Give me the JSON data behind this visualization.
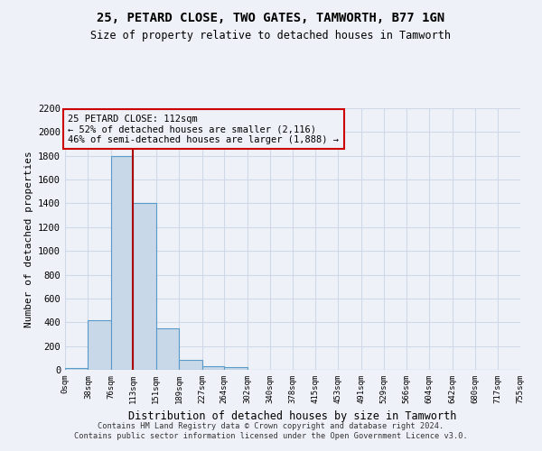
{
  "title1": "25, PETARD CLOSE, TWO GATES, TAMWORTH, B77 1GN",
  "title2": "Size of property relative to detached houses in Tamworth",
  "xlabel": "Distribution of detached houses by size in Tamworth",
  "ylabel": "Number of detached properties",
  "footer1": "Contains HM Land Registry data © Crown copyright and database right 2024.",
  "footer2": "Contains public sector information licensed under the Open Government Licence v3.0.",
  "annotation_line1": "25 PETARD CLOSE: 112sqm",
  "annotation_line2": "← 52% of detached houses are smaller (2,116)",
  "annotation_line3": "46% of semi-detached houses are larger (1,888) →",
  "property_sqm": 112,
  "bar_edges": [
    0,
    38,
    76,
    113,
    151,
    189,
    227,
    264,
    302,
    340,
    378,
    415,
    453,
    491,
    529,
    566,
    604,
    642,
    680,
    717,
    755
  ],
  "bar_heights": [
    15,
    420,
    1800,
    1400,
    350,
    80,
    30,
    20,
    0,
    0,
    0,
    0,
    0,
    0,
    0,
    0,
    0,
    0,
    0,
    0
  ],
  "bar_color": "#c8d8e8",
  "bar_edgecolor": "#5a9ac8",
  "vline_color": "#aa0000",
  "vline_x": 112,
  "annotation_box_color": "#cc0000",
  "background_color": "#eef2f8",
  "grid_color": "#d0d8e8",
  "ylim": [
    0,
    2200
  ],
  "yticks": [
    0,
    200,
    400,
    600,
    800,
    1000,
    1200,
    1400,
    1600,
    1800,
    2000,
    2200
  ]
}
